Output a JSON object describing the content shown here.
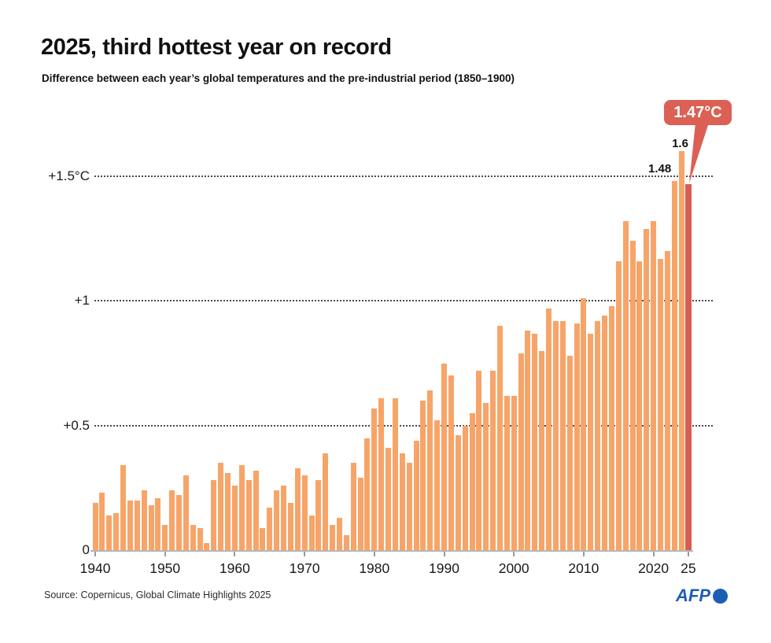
{
  "header": {
    "title": "2025, third hottest year on record",
    "subtitle": "Difference between each year’s global temperatures and the pre-industrial period (1850–1900)"
  },
  "chart_data": {
    "type": "bar",
    "title": "2025, third hottest year on record",
    "subtitle": "Difference between each year’s global temperatures and the pre-industrial period (1850–1900)",
    "unit": "°C",
    "x_start_year": 1940,
    "x": [
      1940,
      1941,
      1942,
      1943,
      1944,
      1945,
      1946,
      1947,
      1948,
      1949,
      1950,
      1951,
      1952,
      1953,
      1954,
      1955,
      1956,
      1957,
      1958,
      1959,
      1960,
      1961,
      1962,
      1963,
      1964,
      1965,
      1966,
      1967,
      1968,
      1969,
      1970,
      1971,
      1972,
      1973,
      1974,
      1975,
      1976,
      1977,
      1978,
      1979,
      1980,
      1981,
      1982,
      1983,
      1984,
      1985,
      1986,
      1987,
      1988,
      1989,
      1990,
      1991,
      1992,
      1993,
      1994,
      1995,
      1996,
      1997,
      1998,
      1999,
      2000,
      2001,
      2002,
      2003,
      2004,
      2005,
      2006,
      2007,
      2008,
      2009,
      2010,
      2011,
      2012,
      2013,
      2014,
      2015,
      2016,
      2017,
      2018,
      2019,
      2020,
      2021,
      2022,
      2023,
      2024,
      2025
    ],
    "values": [
      0.19,
      0.23,
      0.14,
      0.15,
      0.34,
      0.2,
      0.2,
      0.24,
      0.18,
      0.21,
      0.1,
      0.24,
      0.22,
      0.3,
      0.1,
      0.09,
      0.03,
      0.28,
      0.35,
      0.31,
      0.26,
      0.34,
      0.28,
      0.32,
      0.09,
      0.17,
      0.24,
      0.26,
      0.19,
      0.33,
      0.3,
      0.14,
      0.28,
      0.39,
      0.1,
      0.13,
      0.06,
      0.35,
      0.29,
      0.45,
      0.57,
      0.61,
      0.41,
      0.61,
      0.39,
      0.35,
      0.44,
      0.6,
      0.64,
      0.52,
      0.75,
      0.7,
      0.46,
      0.5,
      0.55,
      0.72,
      0.59,
      0.72,
      0.9,
      0.62,
      0.62,
      0.79,
      0.88,
      0.87,
      0.8,
      0.97,
      0.92,
      0.92,
      0.78,
      0.91,
      1.01,
      0.87,
      0.92,
      0.94,
      0.98,
      1.16,
      1.32,
      1.24,
      1.16,
      1.29,
      1.32,
      1.17,
      1.2,
      1.48,
      1.6,
      1.47
    ],
    "highlight_year": 2025,
    "bar_color": "#F7A469",
    "highlight_color": "#D95C52",
    "ylim": [
      0,
      1.75
    ],
    "grid": "horizontal dotted",
    "legend_position": "none",
    "yticks": [
      {
        "value": 1.5,
        "label": "+1.5°C"
      },
      {
        "value": 1.0,
        "label": "+1"
      },
      {
        "value": 0.5,
        "label": "+0.5"
      },
      {
        "value": 0.0,
        "label": "0"
      }
    ],
    "xticks": [
      {
        "year": 1940,
        "label": "1940"
      },
      {
        "year": 1950,
        "label": "1950"
      },
      {
        "year": 1960,
        "label": "1960"
      },
      {
        "year": 1970,
        "label": "1970"
      },
      {
        "year": 1980,
        "label": "1980"
      },
      {
        "year": 1990,
        "label": "1990"
      },
      {
        "year": 2000,
        "label": "2000"
      },
      {
        "year": 2010,
        "label": "2010"
      },
      {
        "year": 2020,
        "label": "2020"
      },
      {
        "year": 2025,
        "label": "25"
      }
    ],
    "annotations": {
      "label_2023": "1.48",
      "label_2024": "1.6",
      "callout_2025": "1.47°C"
    }
  },
  "footer": {
    "source": "Source: Copernicus, Global Climate Highlights 2025",
    "logo_text": "AFP"
  }
}
